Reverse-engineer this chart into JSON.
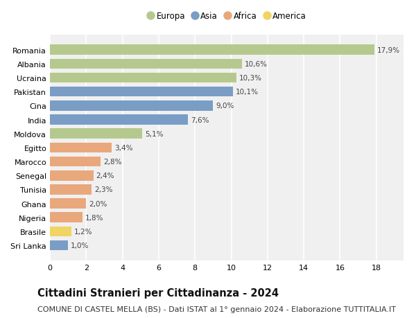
{
  "countries": [
    "Romania",
    "Albania",
    "Ucraina",
    "Pakistan",
    "Cina",
    "India",
    "Moldova",
    "Egitto",
    "Marocco",
    "Senegal",
    "Tunisia",
    "Ghana",
    "Nigeria",
    "Brasile",
    "Sri Lanka"
  ],
  "values": [
    17.9,
    10.6,
    10.3,
    10.1,
    9.0,
    7.6,
    5.1,
    3.4,
    2.8,
    2.4,
    2.3,
    2.0,
    1.8,
    1.2,
    1.0
  ],
  "labels": [
    "17,9%",
    "10,6%",
    "10,3%",
    "10,1%",
    "9,0%",
    "7,6%",
    "5,1%",
    "3,4%",
    "2,8%",
    "2,4%",
    "2,3%",
    "2,0%",
    "1,8%",
    "1,2%",
    "1,0%"
  ],
  "continents": [
    "Europa",
    "Europa",
    "Europa",
    "Asia",
    "Asia",
    "Asia",
    "Europa",
    "Africa",
    "Africa",
    "Africa",
    "Africa",
    "Africa",
    "Africa",
    "America",
    "Asia"
  ],
  "colors": {
    "Europa": "#b5c98e",
    "Asia": "#7a9dc6",
    "Africa": "#e8a87c",
    "America": "#f0d464"
  },
  "legend_order": [
    "Europa",
    "Asia",
    "Africa",
    "America"
  ],
  "xlim": [
    0,
    19.5
  ],
  "xticks": [
    0,
    2,
    4,
    6,
    8,
    10,
    12,
    14,
    16,
    18
  ],
  "title": "Cittadini Stranieri per Cittadinanza - 2024",
  "subtitle": "COMUNE DI CASTEL MELLA (BS) - Dati ISTAT al 1° gennaio 2024 - Elaborazione TUTTITALIA.IT",
  "bg_color": "#ffffff",
  "plot_bg_color": "#f0f0f0",
  "grid_color": "#ffffff",
  "bar_height": 0.72,
  "title_fontsize": 10.5,
  "subtitle_fontsize": 8,
  "label_fontsize": 7.5,
  "tick_fontsize": 8,
  "legend_fontsize": 8.5
}
